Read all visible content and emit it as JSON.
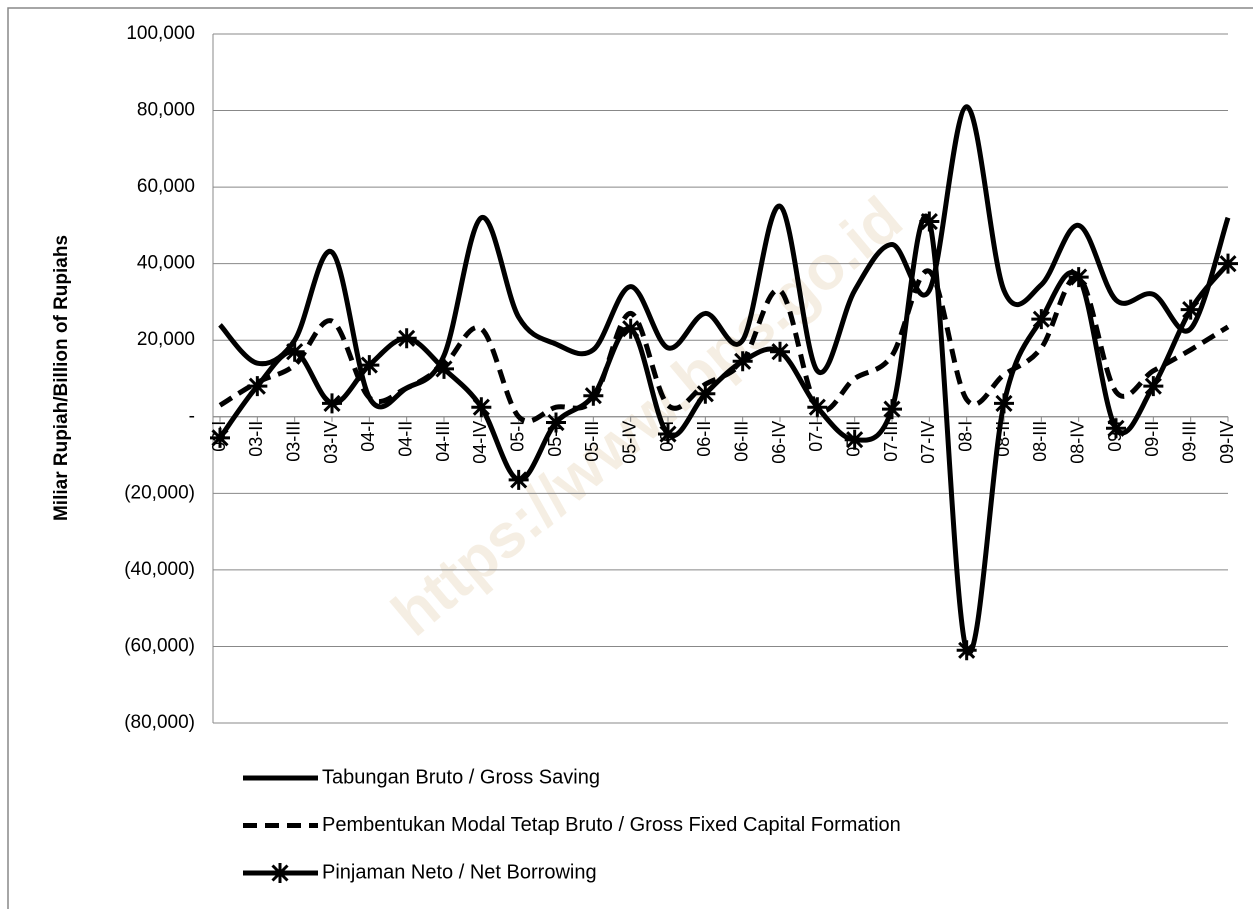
{
  "chart_data": {
    "type": "line",
    "y_axis_label": "Miliar Rupiah/Billion of Rupiahs",
    "watermark": "https://www.bps.go.id",
    "categories": [
      "03-I",
      "03-II",
      "03-III",
      "03-IV",
      "04-I",
      "04-II",
      "04-III",
      "04-IV",
      "05-I",
      "05-II",
      "05-III",
      "05-IV",
      "06-I",
      "06-II",
      "06-III",
      "06-IV",
      "07-I",
      "07-II",
      "07-III",
      "07-IV",
      "08-I",
      "08-II",
      "08-III",
      "08-IV",
      "09-I",
      "09-II",
      "09-III",
      "09-IV"
    ],
    "series": [
      {
        "name": "Tabungan Bruto / Gross Saving",
        "color": "#000000",
        "style": "solid",
        "values": [
          24000,
          14000,
          20000,
          43000,
          5000,
          7500,
          16000,
          52000,
          26000,
          19000,
          17500,
          34000,
          18000,
          27000,
          20000,
          55000,
          12000,
          33000,
          45000,
          33000,
          81000,
          33000,
          34500,
          50000,
          30500,
          32000,
          23000,
          52000
        ]
      },
      {
        "name": "Pembentukan Modal Tetap Bruto / Gross Fixed Capital Formation",
        "color": "#000000",
        "style": "dashed",
        "values": [
          3000,
          9000,
          13500,
          25000,
          5000,
          7500,
          13500,
          23000,
          0,
          2500,
          4500,
          27000,
          3000,
          8500,
          14500,
          33000,
          2500,
          10000,
          16000,
          38000,
          4500,
          11000,
          18000,
          36500,
          6500,
          12000,
          17500,
          23500
        ]
      },
      {
        "name": "Pinjaman Neto / Net Borrowing",
        "color": "#000000",
        "style": "solid",
        "marker": "asterisk",
        "values": [
          -5500,
          8000,
          17000,
          3500,
          13500,
          20500,
          12500,
          2500,
          -16500,
          -1500,
          5500,
          23000,
          -4500,
          6000,
          14500,
          17000,
          2500,
          -6000,
          2000,
          51000,
          -61000,
          3500,
          25500,
          36500,
          -3000,
          8000,
          28000,
          40000
        ]
      }
    ],
    "ylim": [
      -80000,
      100000
    ],
    "yticks": [
      {
        "value": -80000,
        "label": "(80,000)"
      },
      {
        "value": -60000,
        "label": "(60,000)"
      },
      {
        "value": -40000,
        "label": "(40,000)"
      },
      {
        "value": -20000,
        "label": "(20,000)"
      },
      {
        "value": 0,
        "label": "-"
      },
      {
        "value": 20000,
        "label": "20,000"
      },
      {
        "value": 40000,
        "label": "40,000"
      },
      {
        "value": 60000,
        "label": "60,000"
      },
      {
        "value": 80000,
        "label": "80,000"
      },
      {
        "value": 100000,
        "label": "100,000"
      }
    ],
    "grid": true,
    "legend": "bottom"
  }
}
